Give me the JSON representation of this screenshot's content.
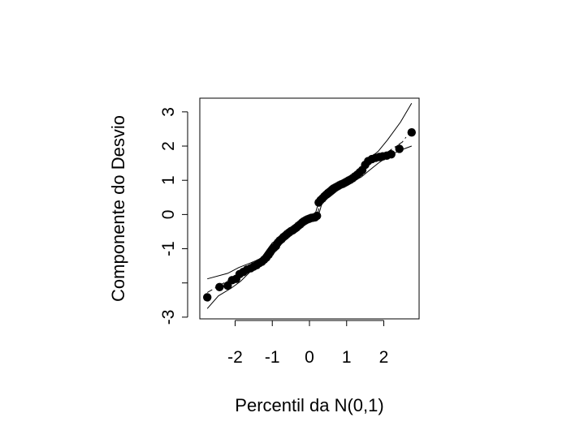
{
  "chart_data": {
    "type": "scatter",
    "xlabel": "Percentil da N(0,1)",
    "ylabel": "Componente do Desvio",
    "xlim": [
      -2.95,
      2.95
    ],
    "ylim": [
      -3.05,
      3.4
    ],
    "x_ticks": [
      -2,
      -1,
      0,
      1,
      2
    ],
    "x_tick_labels": [
      "-2",
      "-1",
      "0",
      "1",
      "2"
    ],
    "y_ticks": [
      -3,
      -2,
      -1,
      0,
      1,
      2,
      3
    ],
    "y_tick_labels": [
      "-3",
      "",
      "-1",
      "0",
      "1",
      "2",
      "3"
    ],
    "grid": false,
    "points": [
      [
        -2.75,
        -2.42
      ],
      [
        -2.42,
        -2.12
      ],
      [
        -2.2,
        -2.08
      ],
      [
        -2.08,
        -1.92
      ],
      [
        -1.97,
        -1.88
      ],
      [
        -1.88,
        -1.74
      ],
      [
        -1.78,
        -1.68
      ],
      [
        -1.68,
        -1.61
      ],
      [
        -1.58,
        -1.57
      ],
      [
        -1.5,
        -1.52
      ],
      [
        -1.42,
        -1.48
      ],
      [
        -1.35,
        -1.42
      ],
      [
        -1.28,
        -1.38
      ],
      [
        -1.22,
        -1.32
      ],
      [
        -1.16,
        -1.26
      ],
      [
        -1.1,
        -1.18
      ],
      [
        -1.05,
        -1.1
      ],
      [
        -1.0,
        -1.02
      ],
      [
        -0.95,
        -0.97
      ],
      [
        -0.9,
        -0.92
      ],
      [
        -0.85,
        -0.82
      ],
      [
        -0.8,
        -0.76
      ],
      [
        -0.75,
        -0.72
      ],
      [
        -0.7,
        -0.66
      ],
      [
        -0.65,
        -0.62
      ],
      [
        -0.6,
        -0.57
      ],
      [
        -0.55,
        -0.53
      ],
      [
        -0.5,
        -0.49
      ],
      [
        -0.45,
        -0.46
      ],
      [
        -0.4,
        -0.42
      ],
      [
        -0.35,
        -0.38
      ],
      [
        -0.3,
        -0.33
      ],
      [
        -0.25,
        -0.29
      ],
      [
        -0.2,
        -0.24
      ],
      [
        -0.15,
        -0.2
      ],
      [
        -0.1,
        -0.17
      ],
      [
        -0.05,
        -0.14
      ],
      [
        0.0,
        -0.12
      ],
      [
        0.05,
        -0.1
      ],
      [
        0.1,
        -0.09
      ],
      [
        0.15,
        -0.08
      ],
      [
        0.2,
        -0.04
      ],
      [
        0.25,
        0.35
      ],
      [
        0.3,
        0.42
      ],
      [
        0.35,
        0.47
      ],
      [
        0.4,
        0.53
      ],
      [
        0.45,
        0.58
      ],
      [
        0.5,
        0.63
      ],
      [
        0.55,
        0.67
      ],
      [
        0.6,
        0.72
      ],
      [
        0.65,
        0.76
      ],
      [
        0.7,
        0.79
      ],
      [
        0.75,
        0.82
      ],
      [
        0.8,
        0.85
      ],
      [
        0.85,
        0.88
      ],
      [
        0.9,
        0.9
      ],
      [
        0.95,
        0.93
      ],
      [
        1.0,
        0.96
      ],
      [
        1.05,
        0.99
      ],
      [
        1.1,
        1.02
      ],
      [
        1.16,
        1.06
      ],
      [
        1.22,
        1.11
      ],
      [
        1.28,
        1.16
      ],
      [
        1.35,
        1.23
      ],
      [
        1.42,
        1.3
      ],
      [
        1.5,
        1.45
      ],
      [
        1.58,
        1.56
      ],
      [
        1.68,
        1.62
      ],
      [
        1.78,
        1.66
      ],
      [
        1.88,
        1.68
      ],
      [
        1.97,
        1.7
      ],
      [
        2.08,
        1.72
      ],
      [
        2.2,
        1.76
      ],
      [
        2.42,
        1.92
      ],
      [
        2.75,
        2.4
      ]
    ],
    "envelope_upper": [
      [
        -2.75,
        -1.88
      ],
      [
        -2.2,
        -1.72
      ],
      [
        -1.9,
        -1.55
      ],
      [
        -1.6,
        -1.42
      ],
      [
        -1.3,
        -1.28
      ],
      [
        -1.15,
        -1.05
      ],
      [
        -1.0,
        -0.83
      ],
      [
        -0.8,
        -0.68
      ],
      [
        -0.6,
        -0.54
      ],
      [
        -0.4,
        -0.34
      ],
      [
        -0.2,
        -0.18
      ],
      [
        0.0,
        -0.08
      ],
      [
        0.15,
        0.0
      ],
      [
        0.3,
        0.55
      ],
      [
        0.55,
        0.78
      ],
      [
        0.8,
        0.94
      ],
      [
        1.0,
        1.06
      ],
      [
        1.2,
        1.2
      ],
      [
        1.4,
        1.4
      ],
      [
        1.6,
        1.62
      ],
      [
        1.85,
        1.85
      ],
      [
        2.1,
        2.18
      ],
      [
        2.45,
        2.7
      ],
      [
        2.75,
        3.25
      ]
    ],
    "envelope_lower": [
      [
        -2.75,
        -2.75
      ],
      [
        -2.45,
        -2.38
      ],
      [
        -2.1,
        -2.15
      ],
      [
        -1.85,
        -1.95
      ],
      [
        -1.6,
        -1.68
      ],
      [
        -1.3,
        -1.5
      ],
      [
        -1.15,
        -1.38
      ],
      [
        -1.0,
        -1.15
      ],
      [
        -0.8,
        -0.9
      ],
      [
        -0.6,
        -0.7
      ],
      [
        -0.4,
        -0.52
      ],
      [
        -0.2,
        -0.33
      ],
      [
        0.0,
        -0.22
      ],
      [
        0.2,
        -0.18
      ],
      [
        0.35,
        0.38
      ],
      [
        0.55,
        0.52
      ],
      [
        0.8,
        0.74
      ],
      [
        1.0,
        0.86
      ],
      [
        1.2,
        0.98
      ],
      [
        1.4,
        1.1
      ],
      [
        1.6,
        1.28
      ],
      [
        1.85,
        1.5
      ],
      [
        2.15,
        1.72
      ],
      [
        2.45,
        1.88
      ],
      [
        2.75,
        2.0
      ]
    ],
    "envelope_middle": [
      [
        -2.75,
        -2.28
      ],
      [
        -2.3,
        -2.0
      ],
      [
        -1.9,
        -1.76
      ],
      [
        -1.6,
        -1.58
      ],
      [
        -1.3,
        -1.42
      ],
      [
        -1.1,
        -1.2
      ],
      [
        -0.9,
        -0.92
      ],
      [
        -0.6,
        -0.62
      ],
      [
        -0.3,
        -0.34
      ],
      [
        0.0,
        -0.16
      ],
      [
        0.2,
        -0.08
      ],
      [
        0.3,
        0.42
      ],
      [
        0.6,
        0.72
      ],
      [
        0.9,
        0.9
      ],
      [
        1.2,
        1.08
      ],
      [
        1.5,
        1.38
      ],
      [
        1.85,
        1.64
      ],
      [
        2.2,
        1.9
      ],
      [
        2.5,
        2.12
      ],
      [
        2.75,
        2.48
      ]
    ]
  }
}
